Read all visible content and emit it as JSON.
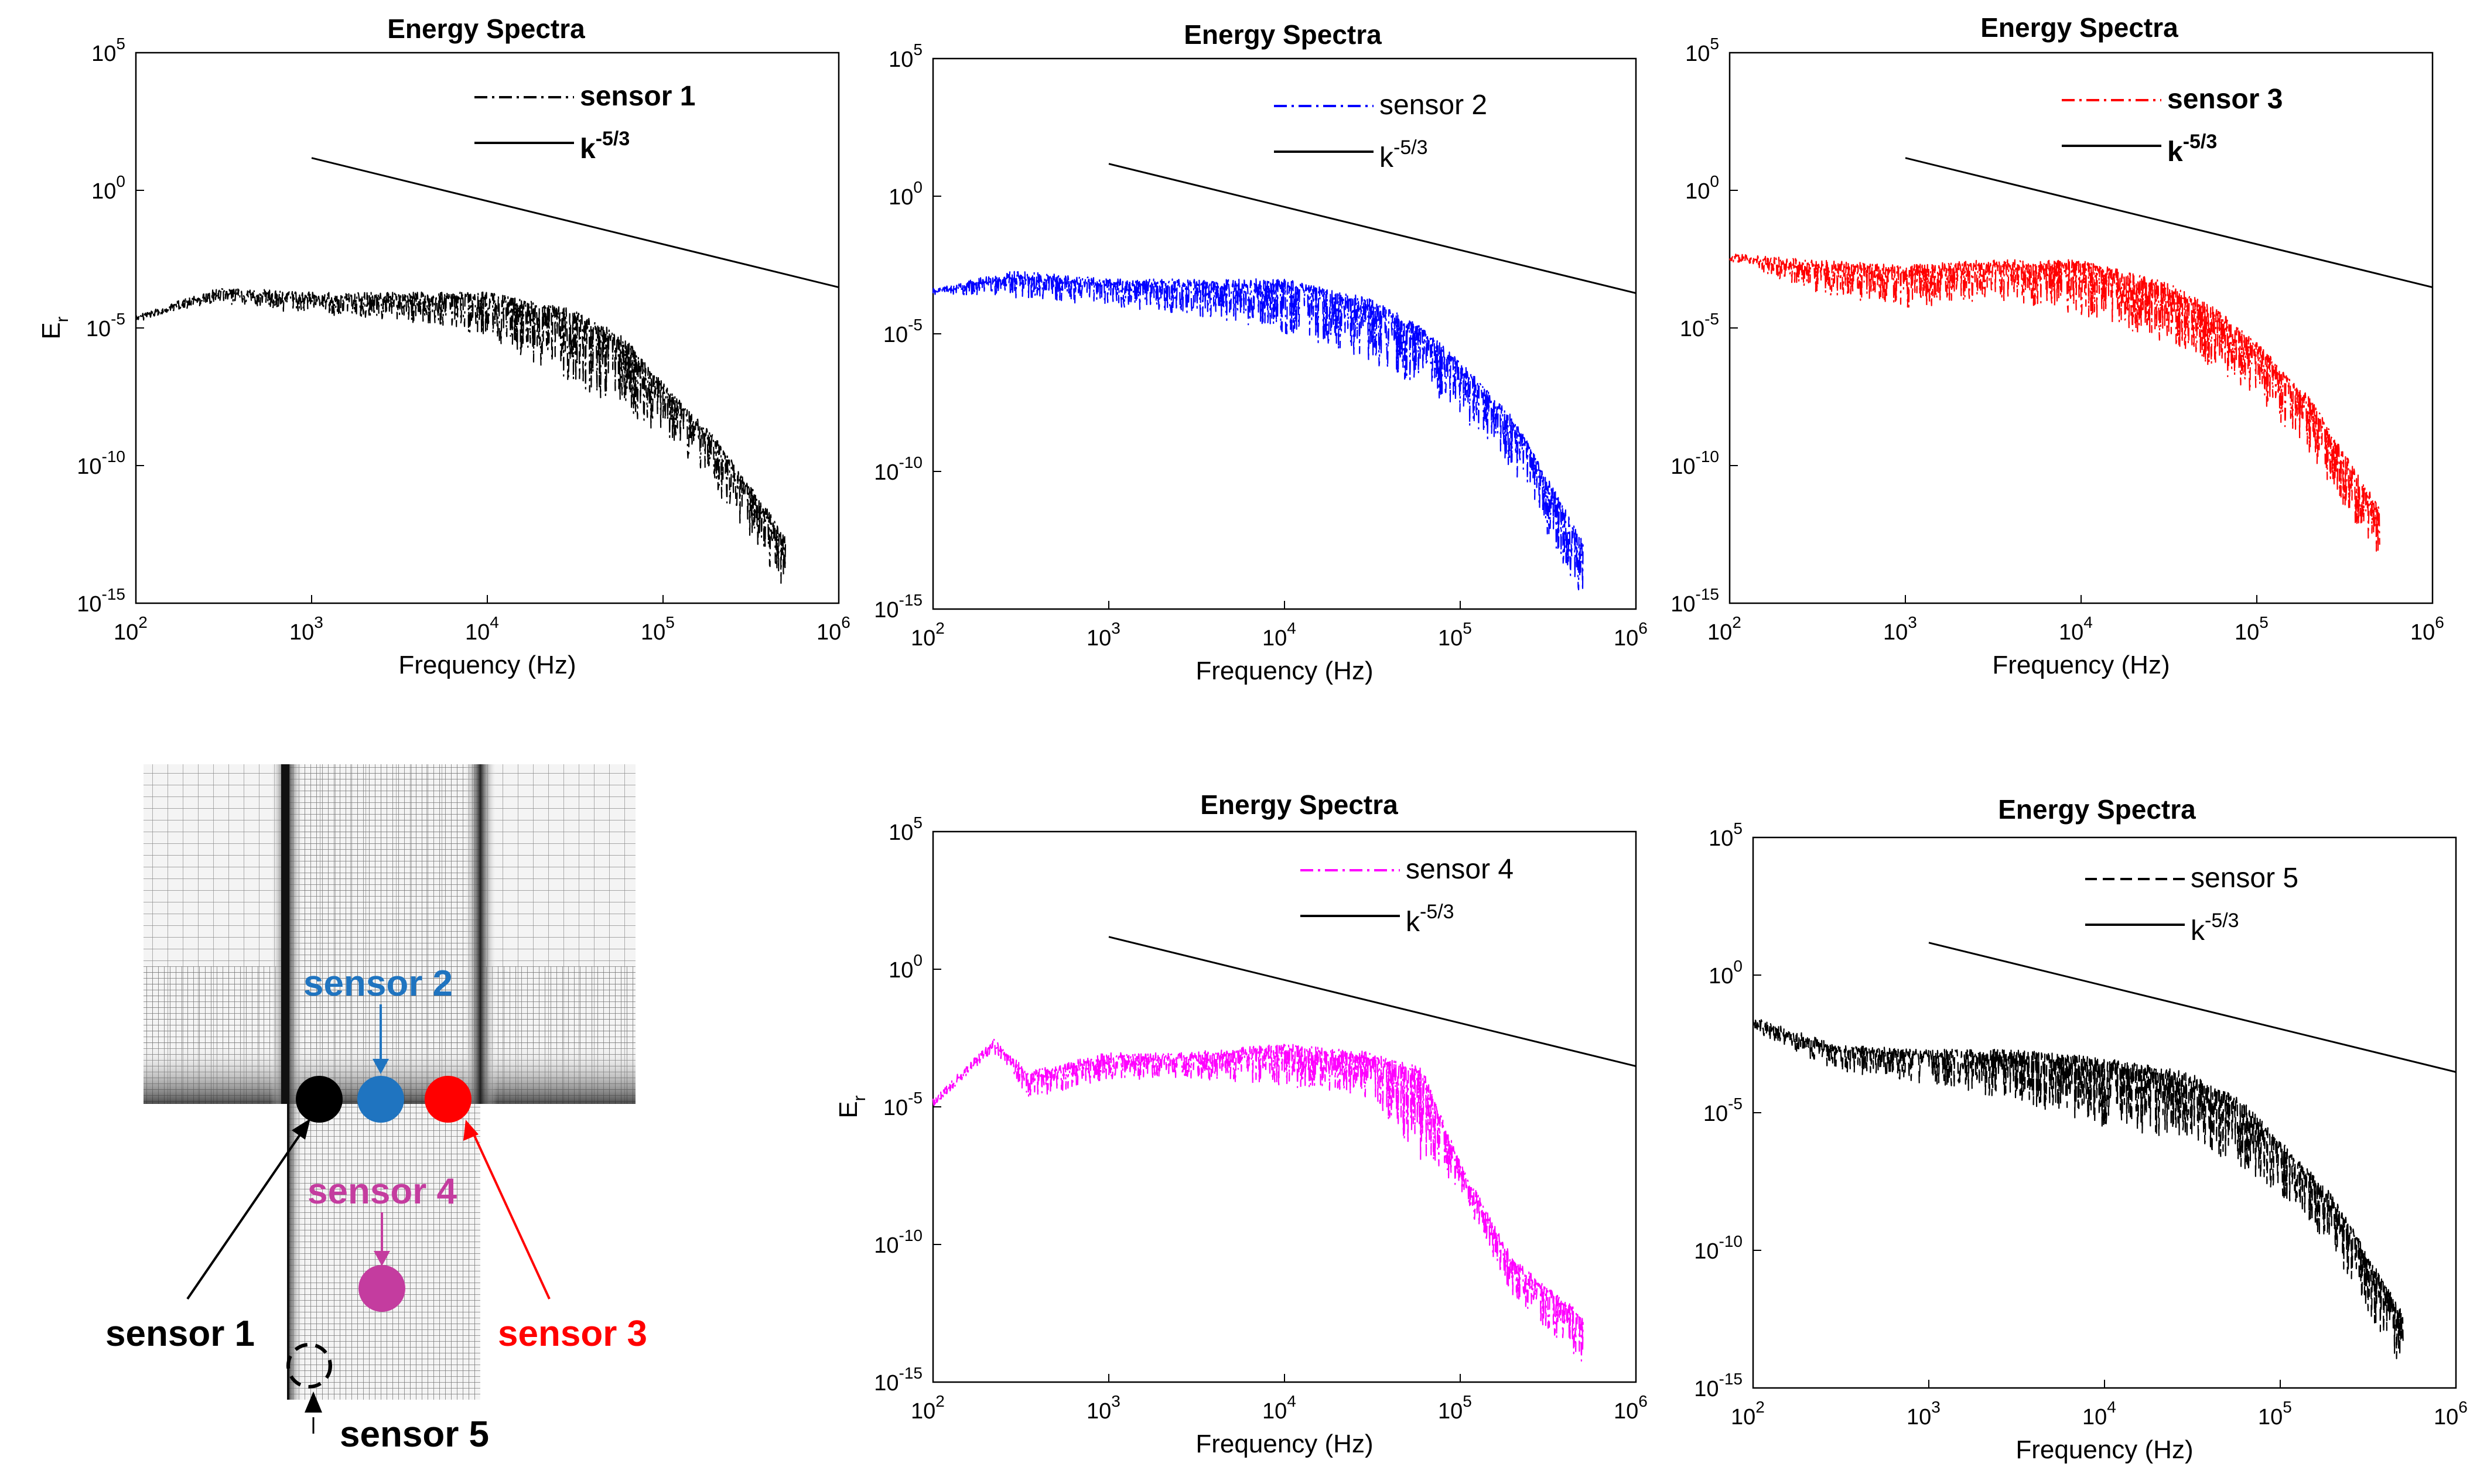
{
  "chart_data": [
    {
      "type": "line",
      "title": "Energy Spectra",
      "xlabel": "Frequency (Hz)",
      "ylabel": "E_r",
      "xscale": "log",
      "yscale": "log",
      "xlim": [
        100,
        1000000
      ],
      "ylim": [
        1e-15,
        100000
      ],
      "x_ticks": [
        "10^2",
        "10^3",
        "10^4",
        "10^5",
        "10^6"
      ],
      "y_ticks": [
        "10^5",
        "10^0",
        "10^-5",
        "10^-10",
        "10^-15"
      ],
      "series": [
        {
          "name": "sensor 1",
          "color": "#000000",
          "style": "dash-dot",
          "kind": "spectrum",
          "x": [
            100,
            300,
            1000,
            3000,
            10000,
            30000,
            60000,
            100000,
            200000,
            500000
          ],
          "y": [
            3e-05,
            0.0003,
            0.0002,
            0.0002,
            0.0002,
            5e-05,
            5e-06,
            1e-07,
            1e-09,
            3e-13
          ],
          "lower": [
            2e-05,
            8e-05,
            3e-05,
            2e-05,
            5e-06,
            1e-07,
            1e-08,
            1e-09,
            1e-11,
            3e-15
          ]
        },
        {
          "name": "k^-5/3",
          "color": "#000000",
          "style": "solid",
          "kind": "line",
          "x": [
            1000,
            1000000
          ],
          "y": [
            15,
            0.0003
          ]
        }
      ]
    },
    {
      "type": "line",
      "title": "Energy Spectra",
      "xlabel": "Frequency (Hz)",
      "ylabel": "",
      "xscale": "log",
      "yscale": "log",
      "xlim": [
        100,
        1000000
      ],
      "ylim": [
        1e-15,
        100000
      ],
      "x_ticks": [
        "10^2",
        "10^3",
        "10^4",
        "10^5",
        "10^6"
      ],
      "y_ticks": [
        "10^5",
        "10^0",
        "10^-5",
        "10^-10",
        "10^-15"
      ],
      "series": [
        {
          "name": "sensor 2",
          "color": "#0000ff",
          "style": "dash-dot",
          "kind": "spectrum",
          "x": [
            100,
            300,
            1000,
            3000,
            10000,
            30000,
            60000,
            100000,
            200000,
            500000
          ],
          "y": [
            0.0005,
            0.002,
            0.001,
            0.001,
            0.001,
            0.0002,
            2e-05,
            1e-06,
            1e-08,
            3e-13
          ],
          "lower": [
            0.0003,
            0.0002,
            0.0001,
            5e-05,
            1e-05,
            1e-06,
            1e-07,
            1e-08,
            1e-10,
            2e-15
          ]
        },
        {
          "name": "k^-5/3",
          "color": "#000000",
          "style": "solid",
          "kind": "line",
          "x": [
            1000,
            1000000
          ],
          "y": [
            15,
            0.0003
          ]
        }
      ]
    },
    {
      "type": "line",
      "title": "Energy Spectra",
      "xlabel": "Frequency (Hz)",
      "ylabel": "",
      "xscale": "log",
      "yscale": "log",
      "xlim": [
        100,
        1000000
      ],
      "ylim": [
        1e-15,
        100000
      ],
      "x_ticks": [
        "10^2",
        "10^3",
        "10^4",
        "10^5",
        "10^6"
      ],
      "y_ticks": [
        "10^5",
        "10^0",
        "10^-5",
        "10^-10",
        "10^-15"
      ],
      "series": [
        {
          "name": "sensor 3",
          "color": "#ff0000",
          "style": "dash-dot",
          "kind": "spectrum",
          "x": [
            100,
            300,
            1000,
            3000,
            10000,
            30000,
            60000,
            100000,
            200000,
            500000
          ],
          "y": [
            0.005,
            0.003,
            0.002,
            0.003,
            0.003,
            0.0005,
            5e-05,
            3e-06,
            3e-08,
            3e-12
          ],
          "lower": [
            0.003,
            0.0002,
            5e-05,
            0.0001,
            3e-05,
            3e-06,
            3e-07,
            3e-08,
            3e-10,
            3e-14
          ]
        },
        {
          "name": "k^-5/3",
          "color": "#000000",
          "style": "solid",
          "kind": "line",
          "x": [
            1000,
            1000000
          ],
          "y": [
            15,
            0.0003
          ]
        }
      ]
    },
    {
      "type": "line",
      "title": "Energy Spectra",
      "xlabel": "Frequency (Hz)",
      "ylabel": "E_r",
      "xscale": "log",
      "yscale": "log",
      "xlim": [
        100,
        1000000
      ],
      "ylim": [
        1e-15,
        100000
      ],
      "x_ticks": [
        "10^2",
        "10^3",
        "10^4",
        "10^5",
        "10^6"
      ],
      "y_ticks": [
        "10^5",
        "10^0",
        "10^-5",
        "10^-10",
        "10^-15"
      ],
      "series": [
        {
          "name": "sensor 4",
          "color": "#ff00ff",
          "style": "dash-dot",
          "kind": "spectrum",
          "x": [
            100,
            220,
            350,
            1000,
            3000,
            10000,
            30000,
            60000,
            100000,
            200000,
            500000
          ],
          "y": [
            2e-05,
            0.003,
            0.0002,
            0.001,
            0.001,
            0.002,
            0.001,
            0.0003,
            1e-07,
            3e-11,
            3e-13
          ],
          "lower": [
            1e-05,
            0.001,
            2e-05,
            0.0001,
            0.0001,
            5e-05,
            2e-05,
            1e-07,
            1e-08,
            1e-12,
            5e-15
          ]
        },
        {
          "name": "k^-5/3",
          "color": "#000000",
          "style": "solid",
          "kind": "line",
          "x": [
            1000,
            1000000
          ],
          "y": [
            15,
            0.0003
          ]
        }
      ]
    },
    {
      "type": "line",
      "title": "Energy Spectra",
      "xlabel": "Frequency (Hz)",
      "ylabel": "",
      "xscale": "log",
      "yscale": "log",
      "xlim": [
        100,
        1000000
      ],
      "ylim": [
        1e-15,
        100000
      ],
      "x_ticks": [
        "10^2",
        "10^3",
        "10^4",
        "10^5",
        "10^6"
      ],
      "y_ticks": [
        "10^5",
        "10^0",
        "10^-5",
        "10^-10",
        "10^-15"
      ],
      "series": [
        {
          "name": "sensor 5",
          "color": "#000000",
          "style": "dashed",
          "kind": "spectrum",
          "x": [
            100,
            300,
            1000,
            3000,
            10000,
            30000,
            60000,
            100000,
            200000,
            500000
          ],
          "y": [
            0.03,
            0.003,
            0.002,
            0.002,
            0.001,
            0.0003,
            3e-05,
            1e-06,
            1e-08,
            5e-13
          ],
          "lower": [
            0.01,
            0.0003,
            0.0001,
            3e-05,
            3e-06,
            1e-06,
            1e-07,
            1e-08,
            1e-10,
            3e-15
          ]
        },
        {
          "name": "k^-5/3",
          "color": "#000000",
          "style": "solid",
          "kind": "line",
          "x": [
            1000,
            1000000
          ],
          "y": [
            15,
            0.0003
          ]
        }
      ]
    }
  ],
  "mesh_diagram": {
    "labels": [
      {
        "text": "sensor 1",
        "color": "#000000"
      },
      {
        "text": "sensor 2",
        "color": "#1f74c0"
      },
      {
        "text": "sensor 3",
        "color": "#ff0000"
      },
      {
        "text": "sensor 4",
        "color": "#c43c9f"
      },
      {
        "text": "sensor 5",
        "color": "#000000"
      }
    ]
  }
}
